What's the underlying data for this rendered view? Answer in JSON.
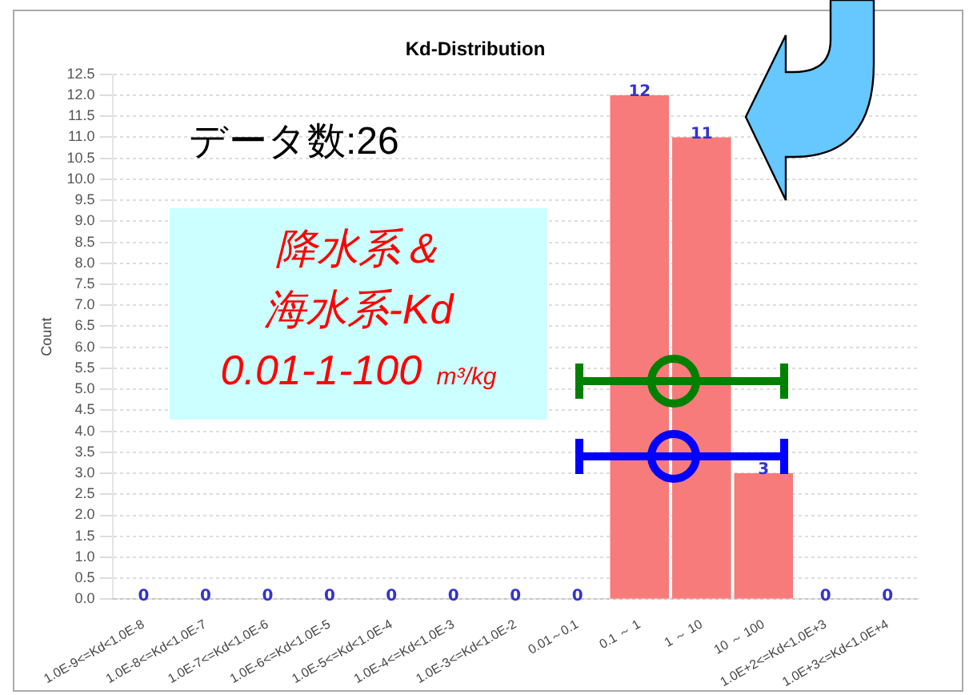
{
  "chart_data": {
    "type": "bar",
    "title": "Kd-Distribution",
    "ylabel": "Count",
    "categories": [
      "1.0E-9<=Kd<1.0E-8",
      "1.0E-8<=Kd<1.0E-7",
      "1.0E-7<=Kd<1.0E-6",
      "1.0E-6<=Kd<1.0E-5",
      "1.0E-5<=Kd<1.0E-4",
      "1.0E-4<=Kd<1.0E-3",
      "1.0E-3<=Kd<1.0E-2",
      "0.01～0.1",
      "0.1 ～ 1",
      "1 ～ 10",
      "10 ～ 100",
      "1.0E+2<=Kd<1.0E+3",
      "1.0E+3<=Kd<1.0E+4"
    ],
    "values": [
      0,
      0,
      0,
      0,
      0,
      0,
      0,
      0,
      12,
      11,
      3,
      0,
      0
    ],
    "color": "#f77b7b",
    "data_labels": true,
    "grid": "y",
    "legend": false,
    "ylim": [
      0,
      12.5
    ],
    "yticks": [
      {
        "value": 0,
        "label": "0.0"
      },
      {
        "value": 0.5,
        "label": "0.5"
      },
      {
        "value": 1,
        "label": "1.0"
      },
      {
        "value": 1.5,
        "label": "1.5"
      },
      {
        "value": 2,
        "label": "2.0"
      },
      {
        "value": 2.5,
        "label": "2.5"
      },
      {
        "value": 3,
        "label": "3.0"
      },
      {
        "value": 3.5,
        "label": "3.5"
      },
      {
        "value": 4,
        "label": "4.0"
      },
      {
        "value": 4.5,
        "label": "4.5"
      },
      {
        "value": 5,
        "label": "5.0"
      },
      {
        "value": 5.5,
        "label": "5.5"
      },
      {
        "value": 6,
        "label": "6.0"
      },
      {
        "value": 6.5,
        "label": "6.5"
      },
      {
        "value": 7,
        "label": "7.0"
      },
      {
        "value": 7.5,
        "label": "7.5"
      },
      {
        "value": 8,
        "label": "8.0"
      },
      {
        "value": 8.5,
        "label": "8.5"
      },
      {
        "value": 9,
        "label": "9.0"
      },
      {
        "value": 9.5,
        "label": "9.5"
      },
      {
        "value": 10,
        "label": "10.0"
      },
      {
        "value": 10.5,
        "label": "10.5"
      },
      {
        "value": 11,
        "label": "11.0"
      },
      {
        "value": 11.5,
        "label": "11.5"
      },
      {
        "value": 12,
        "label": "12.0"
      },
      {
        "value": 12.5,
        "label": "12.5"
      }
    ],
    "annotations": [
      "データ数:26",
      "降水系＆",
      "海水系-Kd",
      "0.01-1-100 m³/kg"
    ]
  }
}
